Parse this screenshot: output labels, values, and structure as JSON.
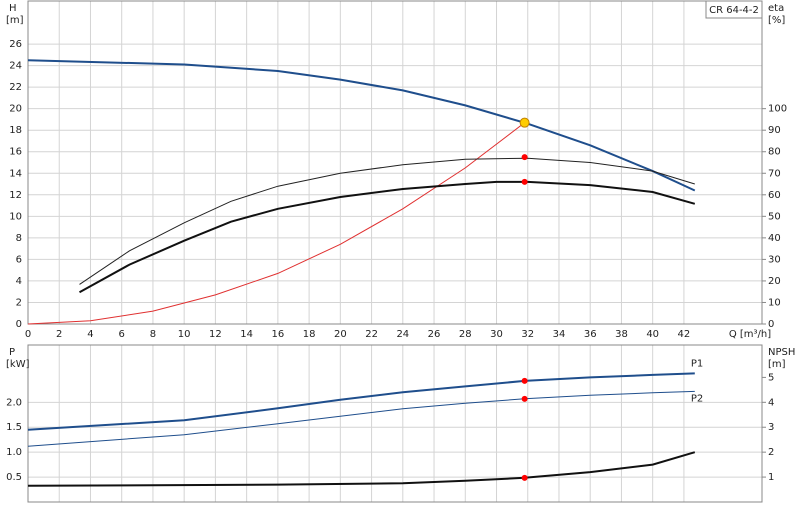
{
  "chart_data": [
    {
      "type": "line",
      "title": "CR 64-4-2",
      "ylabel": "H",
      "yunit": "[m]",
      "y2label": "eta",
      "y2unit": "[%]",
      "xlabel": "Q [m³/h]",
      "xlim": [
        0,
        47
      ],
      "xticks": [
        0,
        2,
        4,
        6,
        8,
        10,
        12,
        14,
        16,
        18,
        20,
        22,
        24,
        26,
        28,
        30,
        32,
        34,
        36,
        38,
        40,
        42
      ],
      "ylim": [
        0,
        30
      ],
      "yticks": [
        0,
        2,
        4,
        6,
        8,
        10,
        12,
        14,
        16,
        18,
        20,
        22,
        24,
        26
      ],
      "y2lim": [
        0,
        150
      ],
      "y2ticks": [
        0,
        10,
        20,
        30,
        40,
        50,
        60,
        70,
        80,
        90,
        100
      ],
      "grid": true,
      "series": [
        {
          "color": "#1f4e8c",
          "width": 2,
          "x": [
            0,
            10,
            16,
            20,
            24,
            28,
            32,
            36,
            40,
            42.7
          ],
          "values": [
            24.5,
            24.1,
            23.5,
            22.7,
            21.7,
            20.3,
            18.6,
            16.6,
            14.2,
            12.4
          ]
        },
        {
          "color": "#e03030",
          "width": 1,
          "x": [
            0,
            4,
            8,
            12,
            16,
            20,
            24,
            28,
            31.8
          ],
          "values": [
            0,
            0.3,
            1.2,
            2.7,
            4.7,
            7.4,
            10.7,
            14.5,
            18.7
          ]
        },
        {
          "color": "#222222",
          "width": 1,
          "axis": "y2",
          "x": [
            3.3,
            6.5,
            10,
            13,
            16,
            20,
            24,
            28,
            32,
            36,
            40,
            42.7
          ],
          "values": [
            18.4,
            34,
            47,
            57,
            64,
            70,
            74,
            76.5,
            77,
            75,
            71,
            65
          ]
        },
        {
          "color": "#111111",
          "width": 2,
          "axis": "y2",
          "x": [
            3.3,
            6.5,
            10,
            13,
            16,
            20,
            24,
            28,
            30,
            32,
            36,
            40,
            42.7
          ],
          "values": [
            14.7,
            27.6,
            38.7,
            47.5,
            53.5,
            59,
            62.7,
            65,
            66,
            66,
            64.5,
            61.3,
            55.8
          ]
        }
      ],
      "markers": [
        {
          "x": 31.8,
          "y": 15.5,
          "color": "#ff0000"
        },
        {
          "x": 31.8,
          "y": 13.2,
          "color": "#ff0000"
        },
        {
          "x": 31.8,
          "y": 18.7,
          "color": "#ffcc00"
        }
      ]
    },
    {
      "type": "line",
      "ylabel": "P",
      "yunit": "[kW]",
      "y2label": "NPSH",
      "y2unit": "[m]",
      "xlim": [
        0,
        47
      ],
      "ylim": [
        0,
        3.15
      ],
      "yticks": [
        0.5,
        {
          "value": 1,
          "label": "1.0"
        },
        1.5,
        {
          "value": 2,
          "label": "2.0"
        }
      ],
      "y2lim": [
        0,
        6.3
      ],
      "y2ticks": [
        1,
        2,
        3,
        4,
        5
      ],
      "grid": true,
      "series": [
        {
          "name": "P1",
          "color": "#1f4e8c",
          "width": 2,
          "x": [
            0,
            10,
            16,
            20,
            24,
            28,
            31.8,
            36,
            40,
            42.7
          ],
          "values": [
            1.45,
            1.64,
            1.88,
            2.05,
            2.2,
            2.32,
            2.43,
            2.5,
            2.55,
            2.58
          ]
        },
        {
          "name": "P2",
          "color": "#1f4e8c",
          "width": 1,
          "x": [
            0,
            10,
            16,
            20,
            24,
            28,
            31.8,
            36,
            40,
            42.7
          ],
          "values": [
            1.12,
            1.35,
            1.57,
            1.72,
            1.87,
            1.98,
            2.07,
            2.14,
            2.19,
            2.22
          ]
        },
        {
          "color": "#111111",
          "width": 2,
          "axis": "y2",
          "x": [
            0,
            16,
            24,
            28,
            31.8,
            36,
            40,
            42.7
          ],
          "values": [
            0.65,
            0.7,
            0.75,
            0.85,
            0.97,
            1.2,
            1.5,
            2.0
          ]
        }
      ],
      "markers": [
        {
          "x": 31.8,
          "y": 2.43,
          "color": "#ff0000"
        },
        {
          "x": 31.8,
          "y": 2.07,
          "color": "#ff0000"
        },
        {
          "x": 31.8,
          "y": 0.97,
          "axis": "y2",
          "color": "#ff0000"
        }
      ]
    }
  ]
}
